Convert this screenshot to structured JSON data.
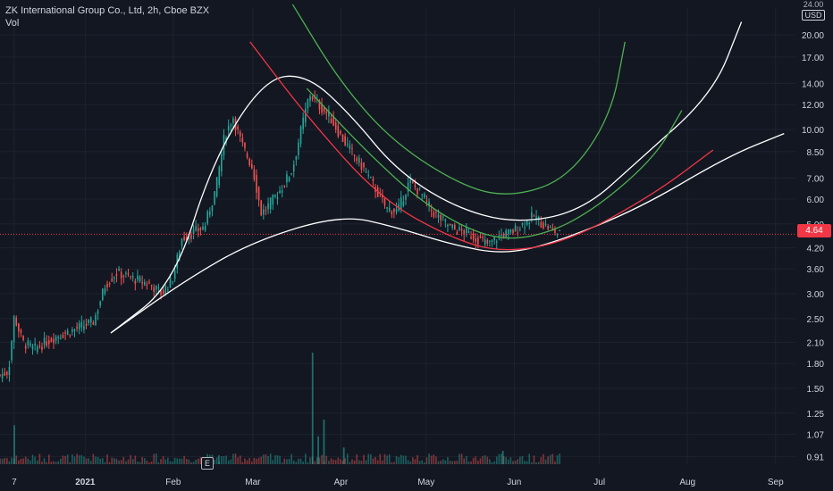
{
  "header": {
    "title": "ZK International Group Co., Ltd, 2h, Cboe BZX",
    "volume_label": "Vol"
  },
  "currency": {
    "top_tick": "24.00",
    "code": "USD"
  },
  "current_price": "4.64",
  "event_marker": "E",
  "colors": {
    "background": "#131722",
    "up": "#26a69a",
    "down": "#ef5350",
    "white_curve": "#ffffff",
    "green_curve": "#4caf50",
    "red_curve": "#f23645",
    "axis_text": "#d1d4dc",
    "price_line": "#f23645"
  },
  "chart_data": {
    "type": "candlestick",
    "title": "ZK International Group Co., Ltd, 2h, Cboe BZX",
    "y_axis": {
      "scale": "log",
      "tick_labels": [
        "24.00",
        "20.00",
        "17.00",
        "14.00",
        "12.00",
        "10.00",
        "8.50",
        "7.00",
        "6.00",
        "5.00",
        "4.20",
        "3.60",
        "3.00",
        "2.50",
        "2.10",
        "1.80",
        "1.50",
        "1.25",
        "1.07",
        "0.91"
      ],
      "range": [
        0.86,
        24.5
      ]
    },
    "x_axis": {
      "tick_labels": [
        "7",
        "2021",
        "Feb",
        "Mar",
        "Apr",
        "May",
        "Jun",
        "Jul",
        "Aug",
        "Sep"
      ],
      "range": [
        "2020-12-02",
        "2021-09-08"
      ]
    },
    "current_price": 4.64,
    "price_path": [
      [
        "2020-12-02",
        1.65
      ],
      [
        "2020-12-05",
        1.7
      ],
      [
        "2020-12-07",
        2.55
      ],
      [
        "2020-12-10",
        2.1
      ],
      [
        "2020-12-14",
        2.0
      ],
      [
        "2020-12-18",
        2.1
      ],
      [
        "2020-12-22",
        2.2
      ],
      [
        "2020-12-28",
        2.3
      ],
      [
        "2021-01-04",
        2.45
      ],
      [
        "2021-01-08",
        3.2
      ],
      [
        "2021-01-12",
        3.5
      ],
      [
        "2021-01-16",
        3.4
      ],
      [
        "2021-01-20",
        3.3
      ],
      [
        "2021-01-24",
        3.2
      ],
      [
        "2021-01-28",
        3.0
      ],
      [
        "2021-02-01",
        3.4
      ],
      [
        "2021-02-04",
        4.5
      ],
      [
        "2021-02-08",
        4.7
      ],
      [
        "2021-02-12",
        4.9
      ],
      [
        "2021-02-16",
        6.5
      ],
      [
        "2021-02-19",
        9.5
      ],
      [
        "2021-02-22",
        11.0
      ],
      [
        "2021-02-25",
        9.0
      ],
      [
        "2021-03-01",
        7.5
      ],
      [
        "2021-03-04",
        5.4
      ],
      [
        "2021-03-07",
        5.8
      ],
      [
        "2021-03-11",
        6.5
      ],
      [
        "2021-03-15",
        7.5
      ],
      [
        "2021-03-18",
        10.0
      ],
      [
        "2021-03-21",
        13.0
      ],
      [
        "2021-03-24",
        12.0
      ],
      [
        "2021-03-28",
        11.0
      ],
      [
        "2021-04-01",
        9.5
      ],
      [
        "2021-04-05",
        8.4
      ],
      [
        "2021-04-09",
        7.5
      ],
      [
        "2021-04-13",
        6.5
      ],
      [
        "2021-04-17",
        5.6
      ],
      [
        "2021-04-21",
        5.5
      ],
      [
        "2021-04-25",
        6.8
      ],
      [
        "2021-04-29",
        6.3
      ],
      [
        "2021-05-03",
        5.5
      ],
      [
        "2021-05-07",
        5.1
      ],
      [
        "2021-05-11",
        4.8
      ],
      [
        "2021-05-15",
        4.7
      ],
      [
        "2021-05-19",
        4.5
      ],
      [
        "2021-05-23",
        4.3
      ],
      [
        "2021-05-27",
        4.6
      ],
      [
        "2021-05-31",
        4.7
      ],
      [
        "2021-06-04",
        5.0
      ],
      [
        "2021-06-08",
        5.3
      ],
      [
        "2021-06-11",
        5.0
      ],
      [
        "2021-06-14",
        4.8
      ],
      [
        "2021-06-17",
        4.64
      ]
    ],
    "volume_spikes": [
      [
        "2020-12-07",
        0.35
      ],
      [
        "2021-02-17",
        0.08
      ],
      [
        "2021-03-22",
        1.0
      ],
      [
        "2021-03-26",
        0.4
      ],
      [
        "2021-03-24",
        0.25
      ],
      [
        "2021-04-02",
        0.15
      ],
      [
        "2021-05-28",
        0.12
      ]
    ],
    "overlays": [
      {
        "color": "white",
        "kind": "rounded-top arc (bullish cup)"
      },
      {
        "color": "white",
        "kind": "rounded-bottom channel"
      },
      {
        "color": "green",
        "kind": "rounded-bottom channel"
      },
      {
        "color": "red",
        "kind": "rounded-bottom channel"
      }
    ]
  }
}
